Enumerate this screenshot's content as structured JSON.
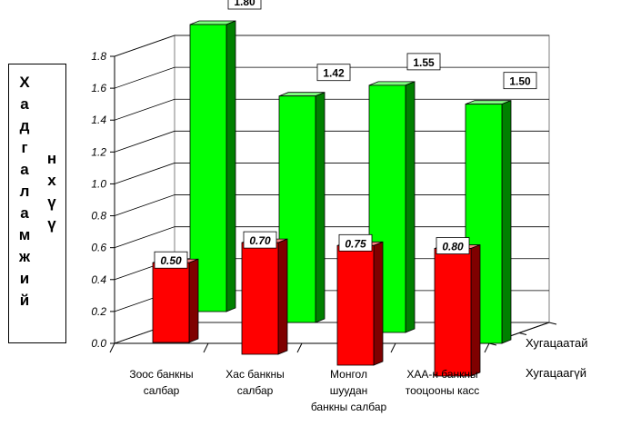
{
  "chart_data": {
    "type": "bar",
    "title": "",
    "ylabel": "Хадгаламжийн хүү",
    "ylabel_columns": [
      [
        "Х",
        "а",
        "д",
        "г",
        "а",
        "л",
        "а",
        "м",
        "ж",
        "и",
        "й"
      ],
      [
        "н",
        "х",
        "ү",
        "ү"
      ]
    ],
    "ylim": [
      0,
      1.8
    ],
    "yticks": [
      "0.0",
      "0.2",
      "0.4",
      "0.6",
      "0.8",
      "1.0",
      "1.2",
      "1.4",
      "1.6",
      "1.8"
    ],
    "categories": [
      [
        "Зоос банкны",
        "салбар"
      ],
      [
        "Хас  банкны",
        "салбар"
      ],
      [
        "Монгол",
        "шуудан",
        "банкны салбар"
      ],
      [
        "ХАА-н банкны",
        "тооцооны касс"
      ]
    ],
    "depth_labels": [
      "Хугацаатай",
      "Хугацаагүй"
    ],
    "series": [
      {
        "name": "Хугацаагүй",
        "values": [
          0.5,
          0.7,
          0.75,
          0.8
        ],
        "labels": [
          "0.50",
          "0.70",
          "0.75",
          "0.80"
        ],
        "color": "#ff0000",
        "side": "#7f0000",
        "top": "#ff8080"
      },
      {
        "name": "Хугацаатай",
        "values": [
          1.8,
          1.42,
          1.55,
          1.5
        ],
        "labels": [
          "1.80",
          "1.42",
          "1.55",
          "1.50"
        ],
        "color": "#00ff00",
        "side": "#008000",
        "top": "#80ff80"
      }
    ],
    "grid": true
  }
}
